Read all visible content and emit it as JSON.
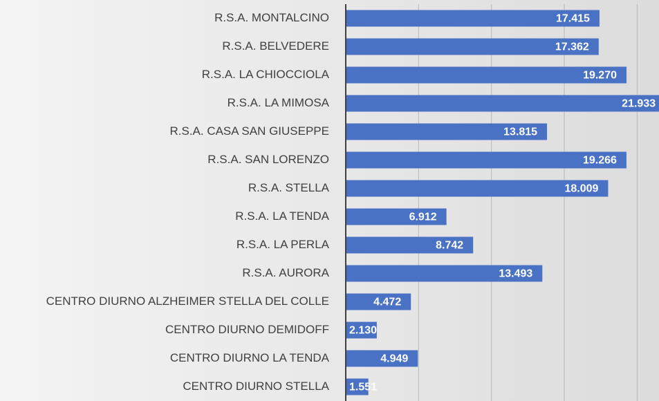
{
  "chart_data": {
    "type": "barh",
    "categories": [
      "R.S.A. MONTALCINO",
      "R.S.A. BELVEDERE",
      "R.S.A. LA CHIOCCIOLA",
      "R.S.A. LA MIMOSA",
      "R.S.A. CASA SAN GIUSEPPE",
      "R.S.A. SAN LORENZO",
      "R.S.A. STELLA",
      "R.S.A. LA TENDA",
      "R.S.A. LA PERLA",
      "R.S.A. AURORA",
      "CENTRO DIURNO ALZHEIMER STELLA DEL COLLE",
      "CENTRO DIURNO DEMIDOFF",
      "CENTRO DIURNO LA TENDA",
      "CENTRO DIURNO STELLA"
    ],
    "values": [
      17415,
      17362,
      19270,
      21933,
      13815,
      19266,
      18009,
      6912,
      8742,
      13493,
      4472,
      2130,
      4949,
      1551
    ],
    "value_labels": [
      "17.415",
      "17.362",
      "19.270",
      "21.933",
      "13.815",
      "19.266",
      "18.009",
      "6.912",
      "8.742",
      "13.493",
      "4.472",
      "2.130",
      "4.949",
      "1.551"
    ],
    "color": "#4a72c4",
    "xlim": [
      0,
      21500
    ],
    "xticks": [
      0,
      5000,
      10000,
      15000,
      20000
    ],
    "grid": true
  }
}
